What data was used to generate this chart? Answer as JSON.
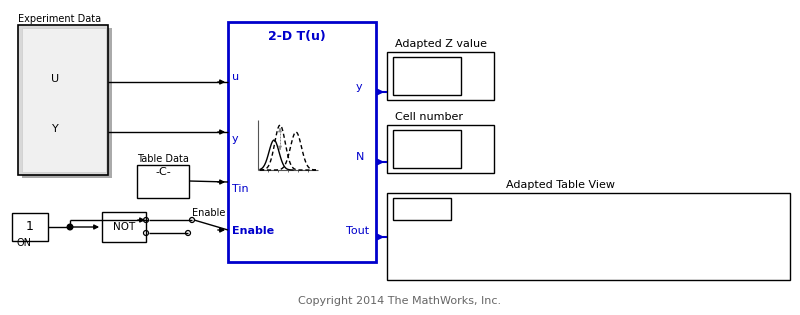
{
  "bg_color": "#ffffff",
  "title": "Copyright 2014 The MathWorks, Inc.",
  "title_color": "#666666",
  "title_fontsize": 8,
  "blue": "#0000cc",
  "black": "#000000",
  "gray_fill": "#e0e0e0",
  "white_fill": "#ffffff",
  "light_gray": "#d8d8d8",
  "exp_data_label": "Experiment Data",
  "table_data_label": "Table Data",
  "on_label": "ON",
  "enable_label": "Enable",
  "not_label": "NOT",
  "block_label": "2-D T(u)",
  "adapted_z_label": "Adapted Z value",
  "cell_number_label": "Cell number",
  "adapted_table_label": "Adapted Table View"
}
